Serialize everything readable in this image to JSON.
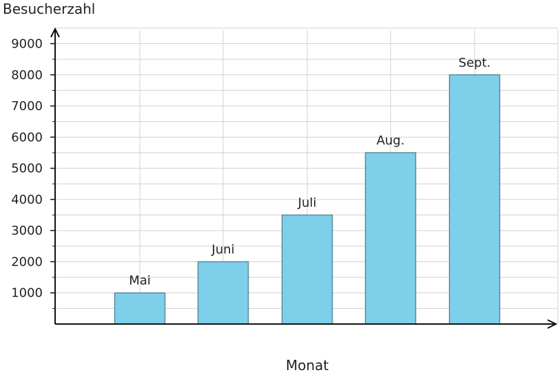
{
  "chart_data": {
    "type": "bar",
    "categories": [
      "Mai",
      "Juni",
      "Juli",
      "Aug.",
      "Sept."
    ],
    "values": [
      1000,
      2000,
      3500,
      5500,
      8000
    ],
    "title": "",
    "xlabel": "Monat",
    "ylabel": "Besucherzahl",
    "ylim": [
      0,
      9500
    ],
    "yticks": [
      "1000",
      "2000",
      "3000",
      "4000",
      "5000",
      "6000",
      "7000",
      "8000",
      "9000"
    ],
    "grid": true,
    "bar_labels": "category name above each bar",
    "colors": {
      "bar": "#7ecfea",
      "bar_edge": "#5a8c99",
      "grid": "#d0d0d0",
      "axis": "#111111"
    }
  }
}
